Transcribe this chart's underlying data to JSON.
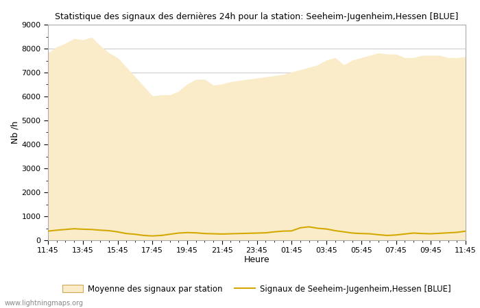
{
  "title": "Statistique des signaux des dernières 24h pour la station: Seeheim-Jugenheim,Hessen [BLUE]",
  "xlabel": "Heure",
  "ylabel": "Nb /h",
  "watermark": "www.lightningmaps.org",
  "ylim": [
    0,
    9000
  ],
  "yticks": [
    0,
    1000,
    2000,
    3000,
    4000,
    5000,
    6000,
    7000,
    8000,
    9000
  ],
  "xtick_labels": [
    "11:45",
    "13:45",
    "15:45",
    "17:45",
    "19:45",
    "21:45",
    "23:45",
    "01:45",
    "03:45",
    "05:45",
    "07:45",
    "09:45",
    "11:45"
  ],
  "legend_avg_label": "Moyenne des signaux par station",
  "legend_station_label": "Signaux de Seeheim-Jugenheim,Hessen [BLUE]",
  "fill_color": "#FAECC8",
  "fill_edge_color": "#F5D58A",
  "line_color": "#D4A800",
  "background_color": "#FFFFFF",
  "plot_bg_color": "#FFFFFF",
  "grid_color": "#CCCCCC",
  "avg_x": [
    0,
    1,
    2,
    3,
    4,
    5,
    6,
    7,
    8,
    9,
    10,
    11,
    12,
    13,
    14,
    15,
    16,
    17,
    18,
    19,
    20,
    21,
    22,
    23,
    24,
    25,
    26,
    27,
    28,
    29,
    30,
    31,
    32,
    33,
    34,
    35,
    36,
    37,
    38,
    39,
    40,
    41,
    42,
    43,
    44,
    45,
    46,
    47,
    48
  ],
  "avg_y": [
    7800,
    8050,
    8200,
    8400,
    8350,
    8450,
    8100,
    7800,
    7600,
    7200,
    6800,
    6400,
    6000,
    6050,
    6050,
    6200,
    6500,
    6700,
    6700,
    6450,
    6500,
    6600,
    6650,
    6700,
    6750,
    6800,
    6850,
    6900,
    7000,
    7100,
    7200,
    7300,
    7500,
    7600,
    7300,
    7500,
    7600,
    7700,
    7800,
    7750,
    7750,
    7600,
    7600,
    7700,
    7700,
    7700,
    7600,
    7600,
    7650
  ],
  "station_x": [
    0,
    1,
    2,
    3,
    4,
    5,
    6,
    7,
    8,
    9,
    10,
    11,
    12,
    13,
    14,
    15,
    16,
    17,
    18,
    19,
    20,
    21,
    22,
    23,
    24,
    25,
    26,
    27,
    28,
    29,
    30,
    31,
    32,
    33,
    34,
    35,
    36,
    37,
    38,
    39,
    40,
    41,
    42,
    43,
    44,
    45,
    46,
    47,
    48
  ],
  "station_y": [
    380,
    420,
    450,
    480,
    460,
    450,
    420,
    400,
    350,
    280,
    250,
    200,
    180,
    200,
    250,
    300,
    320,
    310,
    280,
    270,
    260,
    270,
    280,
    290,
    300,
    310,
    350,
    380,
    390,
    520,
    560,
    500,
    470,
    400,
    350,
    300,
    280,
    270,
    230,
    200,
    220,
    260,
    300,
    280,
    270,
    290,
    310,
    330,
    380
  ]
}
